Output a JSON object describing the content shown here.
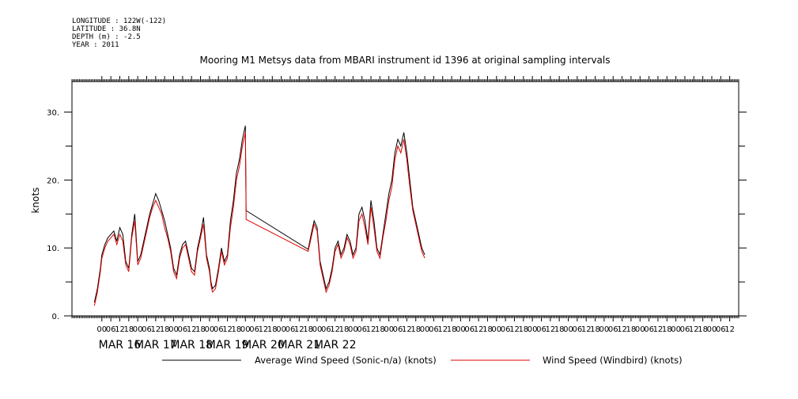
{
  "header": {
    "meta_lines": [
      "LONGITUDE : 122W(-122)",
      "LATITUDE : 36.8N",
      "DEPTH (m) : -2.5",
      "YEAR : 2011"
    ]
  },
  "chart_data": {
    "type": "line",
    "title": "Mooring M1 Metsys data from MBARI instrument id 1396 at original sampling intervals",
    "ylabel": "knots",
    "xlabel": "",
    "x_unit": "hours from 2011-03-16 00:00",
    "xlim": [
      -20,
      426
    ],
    "ylim": [
      0,
      34.5
    ],
    "y_ticks": [
      0,
      10,
      20,
      30
    ],
    "y_tick_labels": [
      "0.",
      "10.",
      "20.",
      "30."
    ],
    "hour_ticks": [
      0,
      6,
      12,
      18,
      24,
      30,
      36,
      42,
      48,
      54,
      60,
      66,
      72,
      78,
      84,
      90,
      96,
      102,
      108,
      114,
      120,
      126,
      132,
      138,
      144,
      150,
      156,
      162,
      168,
      174,
      180,
      186,
      192,
      198,
      204,
      210,
      216,
      222,
      228,
      234,
      240,
      246,
      252,
      258,
      264,
      270,
      276,
      282,
      288,
      294,
      300,
      306,
      312,
      318,
      324,
      330,
      336,
      342,
      348,
      354,
      360,
      366,
      372,
      378,
      384,
      390,
      396,
      402,
      408,
      414,
      420
    ],
    "hour_tick_labels": [
      "00",
      "06",
      "12",
      "18",
      "00",
      "06",
      "12",
      "18",
      "00",
      "06",
      "12",
      "18",
      "00",
      "06",
      "12",
      "18",
      "00",
      "06",
      "12",
      "18",
      "00",
      "06",
      "12",
      "18",
      "00",
      "06",
      "12",
      "18",
      "00",
      "06",
      "12",
      "18",
      "00",
      "06",
      "12",
      "18",
      "00",
      "06",
      "12",
      "18",
      "00",
      "06",
      "12",
      "18",
      "00",
      "06",
      "12",
      "18",
      "00",
      "06",
      "12",
      "18",
      "00",
      "06",
      "12",
      "18",
      "00",
      "06",
      "12",
      "18",
      "00",
      "06",
      "12",
      "18",
      "00",
      "06",
      "12",
      "18",
      "00",
      "06",
      "12",
      "18"
    ],
    "day_labels": [
      {
        "x": 12,
        "label": "MAR 16"
      },
      {
        "x": 36,
        "label": "MAR 17"
      },
      {
        "x": 60,
        "label": "MAR 18"
      },
      {
        "x": 84,
        "label": "MAR 19"
      },
      {
        "x": 108,
        "label": "MAR 20"
      },
      {
        "x": 132,
        "label": "MAR 21"
      },
      {
        "x": 156,
        "label": "MAR 22"
      }
    ],
    "series": [
      {
        "name": "Average Wind Speed (Sonic-n/a) (knots)",
        "color": "#000000",
        "x": [
          -5,
          -3,
          -1,
          0,
          2,
          4,
          6,
          8,
          10,
          12,
          14,
          16,
          18,
          20,
          22,
          24,
          26,
          28,
          30,
          32,
          34,
          36,
          38,
          40,
          42,
          44,
          46,
          48,
          50,
          52,
          54,
          56,
          58,
          60,
          62,
          64,
          66,
          68,
          70,
          72,
          73,
          74,
          76,
          78,
          80,
          82,
          84,
          86,
          88,
          90,
          92,
          94,
          96,
          96.5,
          138,
          140,
          142,
          144,
          146,
          148,
          150,
          152,
          154,
          156,
          158,
          160,
          162,
          164,
          166,
          168,
          170,
          172,
          174,
          176,
          178,
          180,
          182,
          184,
          186,
          188,
          190,
          192,
          194,
          196,
          198,
          200,
          202,
          204,
          206,
          208,
          210,
          212,
          214,
          216
        ],
        "y": [
          2,
          4,
          7,
          9,
          10.5,
          11.5,
          12,
          12.5,
          11,
          13,
          12,
          8,
          7,
          12,
          15,
          8,
          9,
          11,
          13,
          15,
          16.5,
          18,
          17,
          15.5,
          14,
          12,
          10,
          7,
          6,
          9,
          10.5,
          11,
          9,
          7,
          6.5,
          10,
          12,
          14.5,
          9,
          7,
          5,
          4,
          4.5,
          7,
          10,
          8,
          9,
          14,
          17,
          21,
          23,
          26,
          28,
          15.5,
          9.8,
          12,
          14,
          13,
          8,
          6,
          4,
          5,
          7,
          10,
          11,
          9,
          10,
          12,
          11,
          9,
          10,
          15,
          16,
          14,
          11,
          17,
          14,
          10,
          9,
          12,
          15,
          18,
          20,
          24,
          26,
          25,
          27,
          24,
          20,
          16,
          14,
          12,
          10,
          9
        ]
      },
      {
        "name": "Wind Speed (Windbird) (knots)",
        "color": "#e00000",
        "x": [
          -5,
          -3,
          -1,
          0,
          2,
          4,
          6,
          8,
          10,
          12,
          14,
          16,
          18,
          20,
          22,
          24,
          26,
          28,
          30,
          32,
          34,
          36,
          38,
          40,
          42,
          44,
          46,
          48,
          50,
          52,
          54,
          56,
          58,
          60,
          62,
          64,
          66,
          68,
          70,
          72,
          73,
          74,
          76,
          78,
          80,
          82,
          84,
          86,
          88,
          90,
          92,
          94,
          96,
          96.5,
          138,
          140,
          142,
          144,
          146,
          148,
          150,
          152,
          154,
          156,
          158,
          160,
          162,
          164,
          166,
          168,
          170,
          172,
          174,
          176,
          178,
          180,
          182,
          184,
          186,
          188,
          190,
          192,
          194,
          196,
          198,
          200,
          202,
          204,
          206,
          208,
          210,
          212,
          214,
          216
        ],
        "y": [
          1.5,
          3.5,
          6.5,
          8.5,
          10,
          11,
          11.5,
          12,
          10.5,
          12,
          11,
          7.5,
          6.5,
          11.5,
          14,
          7.5,
          8.5,
          10.5,
          12.5,
          14.5,
          16,
          17,
          16,
          15,
          13,
          11.5,
          9.5,
          6.5,
          5.5,
          8.5,
          10,
          10.5,
          8.5,
          6.5,
          6,
          9.5,
          11.5,
          13.5,
          8.5,
          6.5,
          4.5,
          3.5,
          4,
          6.5,
          9.5,
          7.5,
          8.5,
          13,
          16,
          20,
          22,
          25,
          27,
          14.2,
          9.5,
          11.5,
          13.5,
          12.5,
          7.5,
          5.5,
          3.5,
          4.5,
          6.5,
          9.5,
          10.5,
          8.5,
          9.5,
          11.5,
          10.5,
          8.5,
          9.5,
          14,
          15,
          13,
          10.5,
          16,
          13,
          9.5,
          8.5,
          11.5,
          14,
          17,
          19,
          23,
          25,
          24,
          26,
          23,
          19,
          15.5,
          13.5,
          11.5,
          9.5,
          8.5
        ]
      }
    ],
    "grid": false,
    "legend": "bottom"
  }
}
